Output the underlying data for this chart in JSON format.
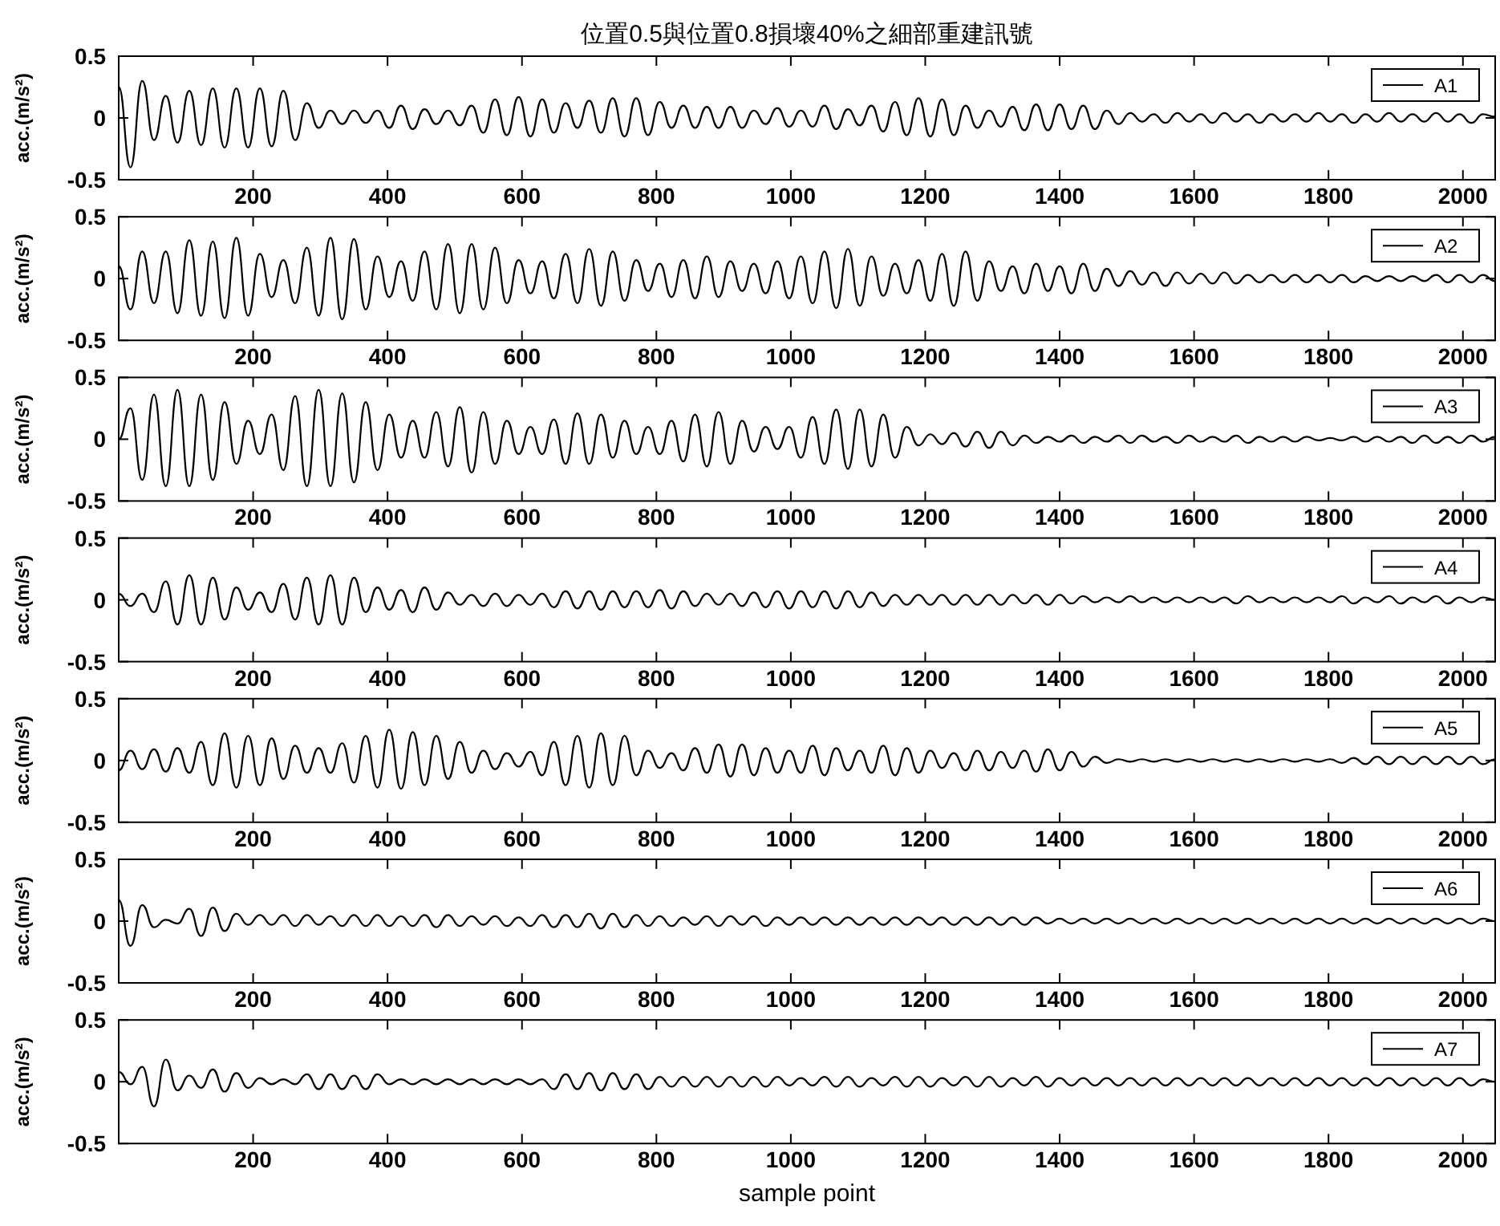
{
  "chart_data": [
    {
      "type": "line",
      "title": "位置0.5與位置0.8損壞40%之細部重建訊號",
      "ylabel": "acc.(m/s²)",
      "xlim": [
        0,
        2048
      ],
      "xticks": [
        200,
        400,
        600,
        800,
        1000,
        1200,
        1400,
        1600,
        1800,
        2000
      ],
      "ylim": [
        -0.5,
        0.5
      ],
      "yticks": [
        -0.5,
        0,
        0.5
      ],
      "legend": "top right",
      "x": [
        0,
        17.5,
        35,
        52.5,
        70,
        87.5,
        105,
        122.5,
        140,
        157.5,
        175,
        192.5,
        210,
        227.5,
        245,
        262.5,
        280,
        297.5,
        315,
        332.5,
        350,
        367.5,
        385,
        402.5,
        420,
        437.5,
        455,
        472.5,
        490,
        507.5,
        525,
        542.5,
        560,
        577.5,
        595,
        612.5,
        630,
        647.5,
        665,
        682.5,
        700,
        717.5,
        735,
        752.5,
        770,
        787.5,
        805,
        822.5,
        840,
        857.5,
        875,
        892.5,
        910,
        927.5,
        945,
        962.5,
        980,
        997.5,
        1015,
        1032.5,
        1050,
        1067.5,
        1085,
        1102.5,
        1120,
        1137.5,
        1155,
        1172.5,
        1190,
        1207.5,
        1225,
        1242.5,
        1260,
        1277.5,
        1295,
        1312.5,
        1330,
        1347.5,
        1365,
        1382.5,
        1400,
        1417.5,
        1435,
        1452.5,
        1470,
        1487.5,
        1505,
        1522.5,
        1540,
        1557.5,
        1575,
        1592.5,
        1610,
        1627.5,
        1645,
        1662.5,
        1680,
        1697.5,
        1715,
        1732.5,
        1750,
        1767.5,
        1785,
        1802.5,
        1820,
        1837.5,
        1855,
        1872.5,
        1890,
        1907.5,
        1925,
        1942.5,
        1960,
        1977.5,
        1995,
        2012.5,
        2030,
        2047.5
      ],
      "series": [
        {
          "name": "A1",
          "color": "#000000",
          "values": [
            0.25,
            -0.4,
            0.3,
            -0.18,
            0.18,
            -0.2,
            0.22,
            -0.22,
            0.24,
            -0.24,
            0.24,
            -0.24,
            0.24,
            -0.23,
            0.22,
            -0.18,
            0.12,
            -0.08,
            0.06,
            -0.05,
            0.06,
            -0.04,
            0.06,
            -0.08,
            0.1,
            -0.09,
            0.07,
            -0.05,
            0.06,
            -0.06,
            0.1,
            -0.12,
            0.15,
            -0.14,
            0.17,
            -0.15,
            0.15,
            -0.12,
            0.12,
            -0.08,
            0.14,
            -0.12,
            0.16,
            -0.15,
            0.16,
            -0.14,
            0.13,
            -0.08,
            0.1,
            -0.08,
            0.09,
            -0.08,
            0.09,
            -0.08,
            0.06,
            -0.05,
            0.08,
            -0.07,
            0.06,
            -0.07,
            0.1,
            -0.09,
            0.07,
            -0.06,
            0.1,
            -0.11,
            0.13,
            -0.14,
            0.16,
            -0.15,
            0.15,
            -0.14,
            0.1,
            -0.08,
            0.06,
            -0.07,
            0.09,
            -0.1,
            0.11,
            -0.1,
            0.11,
            -0.09,
            0.1,
            -0.09,
            0.06,
            -0.05,
            0.04,
            -0.03,
            0.03,
            -0.04,
            0.04,
            -0.03,
            0.03,
            -0.04,
            0.04,
            -0.03,
            0.03,
            -0.04,
            0.03,
            -0.03,
            0.03,
            -0.03,
            0.04,
            -0.03,
            0.03,
            -0.04,
            0.03,
            -0.03,
            0.04,
            -0.03,
            0.03,
            -0.03,
            0.04,
            -0.03,
            0.03,
            -0.04,
            0.03,
            0.01
          ]
        }
      ]
    },
    {
      "type": "line",
      "ylabel": "acc.(m/s²)",
      "xlim": [
        0,
        2048
      ],
      "xticks": [
        200,
        400,
        600,
        800,
        1000,
        1200,
        1400,
        1600,
        1800,
        2000
      ],
      "ylim": [
        -0.5,
        0.5
      ],
      "yticks": [
        -0.5,
        0,
        0.5
      ],
      "legend": "top right",
      "x": [
        0,
        17.5,
        35,
        52.5,
        70,
        87.5,
        105,
        122.5,
        140,
        157.5,
        175,
        192.5,
        210,
        227.5,
        245,
        262.5,
        280,
        297.5,
        315,
        332.5,
        350,
        367.5,
        385,
        402.5,
        420,
        437.5,
        455,
        472.5,
        490,
        507.5,
        525,
        542.5,
        560,
        577.5,
        595,
        612.5,
        630,
        647.5,
        665,
        682.5,
        700,
        717.5,
        735,
        752.5,
        770,
        787.5,
        805,
        822.5,
        840,
        857.5,
        875,
        892.5,
        910,
        927.5,
        945,
        962.5,
        980,
        997.5,
        1015,
        1032.5,
        1050,
        1067.5,
        1085,
        1102.5,
        1120,
        1137.5,
        1155,
        1172.5,
        1190,
        1207.5,
        1225,
        1242.5,
        1260,
        1277.5,
        1295,
        1312.5,
        1330,
        1347.5,
        1365,
        1382.5,
        1400,
        1417.5,
        1435,
        1452.5,
        1470,
        1487.5,
        1505,
        1522.5,
        1540,
        1557.5,
        1575,
        1592.5,
        1610,
        1627.5,
        1645,
        1662.5,
        1680,
        1697.5,
        1715,
        1732.5,
        1750,
        1767.5,
        1785,
        1802.5,
        1820,
        1837.5,
        1855,
        1872.5,
        1890,
        1907.5,
        1925,
        1942.5,
        1960,
        1977.5,
        1995,
        2012.5,
        2030,
        2047.5
      ],
      "series": [
        {
          "name": "A2",
          "color": "#000000",
          "values": [
            0.1,
            -0.25,
            0.22,
            -0.2,
            0.22,
            -0.28,
            0.31,
            -0.3,
            0.3,
            -0.32,
            0.33,
            -0.3,
            0.2,
            -0.15,
            0.15,
            -0.2,
            0.25,
            -0.3,
            0.33,
            -0.33,
            0.32,
            -0.25,
            0.18,
            -0.15,
            0.14,
            -0.18,
            0.22,
            -0.25,
            0.28,
            -0.28,
            0.28,
            -0.25,
            0.25,
            -0.2,
            0.15,
            -0.12,
            0.14,
            -0.16,
            0.2,
            -0.2,
            0.24,
            -0.22,
            0.22,
            -0.18,
            0.15,
            -0.1,
            0.12,
            -0.15,
            0.15,
            -0.16,
            0.18,
            -0.15,
            0.14,
            -0.1,
            0.12,
            -0.12,
            0.14,
            -0.16,
            0.18,
            -0.2,
            0.22,
            -0.24,
            0.24,
            -0.22,
            0.18,
            -0.14,
            0.12,
            -0.12,
            0.15,
            -0.18,
            0.2,
            -0.22,
            0.22,
            -0.18,
            0.14,
            -0.1,
            0.1,
            -0.12,
            0.12,
            -0.1,
            0.1,
            -0.12,
            0.12,
            -0.1,
            0.08,
            -0.06,
            0.06,
            -0.05,
            0.05,
            -0.06,
            0.05,
            -0.04,
            0.04,
            -0.04,
            0.05,
            -0.04,
            0.03,
            -0.03,
            0.03,
            -0.03,
            0.03,
            -0.03,
            0.03,
            -0.03,
            0.03,
            -0.03,
            0.02,
            -0.02,
            0.02,
            -0.02,
            0.02,
            -0.02,
            0.03,
            -0.03,
            0.03,
            -0.03,
            0.03,
            -0.02
          ]
        }
      ]
    },
    {
      "type": "line",
      "ylabel": "acc.(m/s²)",
      "xlim": [
        0,
        2048
      ],
      "xticks": [
        200,
        400,
        600,
        800,
        1000,
        1200,
        1400,
        1600,
        1800,
        2000
      ],
      "ylim": [
        -0.5,
        0.5
      ],
      "yticks": [
        -0.5,
        0,
        0.5
      ],
      "legend": "top right",
      "x": [
        0,
        17.5,
        35,
        52.5,
        70,
        87.5,
        105,
        122.5,
        140,
        157.5,
        175,
        192.5,
        210,
        227.5,
        245,
        262.5,
        280,
        297.5,
        315,
        332.5,
        350,
        367.5,
        385,
        402.5,
        420,
        437.5,
        455,
        472.5,
        490,
        507.5,
        525,
        542.5,
        560,
        577.5,
        595,
        612.5,
        630,
        647.5,
        665,
        682.5,
        700,
        717.5,
        735,
        752.5,
        770,
        787.5,
        805,
        822.5,
        840,
        857.5,
        875,
        892.5,
        910,
        927.5,
        945,
        962.5,
        980,
        997.5,
        1015,
        1032.5,
        1050,
        1067.5,
        1085,
        1102.5,
        1120,
        1137.5,
        1155,
        1172.5,
        1190,
        1207.5,
        1225,
        1242.5,
        1260,
        1277.5,
        1295,
        1312.5,
        1330,
        1347.5,
        1365,
        1382.5,
        1400,
        1417.5,
        1435,
        1452.5,
        1470,
        1487.5,
        1505,
        1522.5,
        1540,
        1557.5,
        1575,
        1592.5,
        1610,
        1627.5,
        1645,
        1662.5,
        1680,
        1697.5,
        1715,
        1732.5,
        1750,
        1767.5,
        1785,
        1802.5,
        1820,
        1837.5,
        1855,
        1872.5,
        1890,
        1907.5,
        1925,
        1942.5,
        1960,
        1977.5,
        1995,
        2012.5,
        2030,
        2047.5
      ],
      "series": [
        {
          "name": "A3",
          "color": "#000000",
          "values": [
            0.0,
            0.25,
            -0.33,
            0.36,
            -0.38,
            0.4,
            -0.38,
            0.36,
            -0.33,
            0.3,
            -0.2,
            0.15,
            -0.12,
            0.2,
            -0.25,
            0.35,
            -0.38,
            0.4,
            -0.38,
            0.37,
            -0.35,
            0.3,
            -0.25,
            0.2,
            -0.15,
            0.15,
            -0.15,
            0.22,
            -0.22,
            0.26,
            -0.27,
            0.22,
            -0.2,
            0.15,
            -0.12,
            0.1,
            -0.12,
            0.16,
            -0.2,
            0.21,
            -0.2,
            0.2,
            -0.15,
            0.15,
            -0.12,
            0.1,
            -0.12,
            0.15,
            -0.18,
            0.2,
            -0.22,
            0.22,
            -0.2,
            0.15,
            -0.1,
            0.1,
            -0.08,
            0.1,
            -0.15,
            0.18,
            -0.2,
            0.24,
            -0.24,
            0.24,
            -0.22,
            0.2,
            -0.15,
            0.1,
            -0.05,
            0.04,
            -0.04,
            0.05,
            -0.06,
            0.06,
            -0.07,
            0.06,
            -0.05,
            0.03,
            -0.03,
            0.02,
            -0.02,
            0.03,
            -0.03,
            0.02,
            -0.02,
            0.03,
            -0.03,
            0.03,
            -0.02,
            0.02,
            -0.03,
            0.03,
            -0.02,
            0.02,
            -0.02,
            0.03,
            -0.03,
            0.02,
            -0.02,
            0.02,
            -0.02,
            0.02,
            -0.01,
            0.01,
            -0.01,
            0.02,
            -0.02,
            0.02,
            -0.02,
            0.02,
            -0.03,
            0.03,
            -0.03,
            0.02,
            -0.03,
            0.03,
            -0.02,
            0.02
          ]
        }
      ]
    },
    {
      "type": "line",
      "ylabel": "acc.(m/s²)",
      "xlim": [
        0,
        2048
      ],
      "xticks": [
        200,
        400,
        600,
        800,
        1000,
        1200,
        1400,
        1600,
        1800,
        2000
      ],
      "ylim": [
        -0.5,
        0.5
      ],
      "yticks": [
        -0.5,
        0,
        0.5
      ],
      "legend": "top right",
      "x": [
        0,
        17.5,
        35,
        52.5,
        70,
        87.5,
        105,
        122.5,
        140,
        157.5,
        175,
        192.5,
        210,
        227.5,
        245,
        262.5,
        280,
        297.5,
        315,
        332.5,
        350,
        367.5,
        385,
        402.5,
        420,
        437.5,
        455,
        472.5,
        490,
        507.5,
        525,
        542.5,
        560,
        577.5,
        595,
        612.5,
        630,
        647.5,
        665,
        682.5,
        700,
        717.5,
        735,
        752.5,
        770,
        787.5,
        805,
        822.5,
        840,
        857.5,
        875,
        892.5,
        910,
        927.5,
        945,
        962.5,
        980,
        997.5,
        1015,
        1032.5,
        1050,
        1067.5,
        1085,
        1102.5,
        1120,
        1137.5,
        1155,
        1172.5,
        1190,
        1207.5,
        1225,
        1242.5,
        1260,
        1277.5,
        1295,
        1312.5,
        1330,
        1347.5,
        1365,
        1382.5,
        1400,
        1417.5,
        1435,
        1452.5,
        1470,
        1487.5,
        1505,
        1522.5,
        1540,
        1557.5,
        1575,
        1592.5,
        1610,
        1627.5,
        1645,
        1662.5,
        1680,
        1697.5,
        1715,
        1732.5,
        1750,
        1767.5,
        1785,
        1802.5,
        1820,
        1837.5,
        1855,
        1872.5,
        1890,
        1907.5,
        1925,
        1942.5,
        1960,
        1977.5,
        1995,
        2012.5,
        2030,
        2047.5
      ],
      "series": [
        {
          "name": "A4",
          "color": "#000000",
          "values": [
            0.05,
            -0.05,
            0.05,
            -0.1,
            0.15,
            -0.2,
            0.2,
            -0.2,
            0.18,
            -0.16,
            0.1,
            -0.08,
            0.06,
            -0.1,
            0.13,
            -0.16,
            0.18,
            -0.2,
            0.2,
            -0.2,
            0.18,
            -0.1,
            0.1,
            -0.08,
            0.08,
            -0.1,
            0.1,
            -0.08,
            0.06,
            -0.04,
            0.04,
            -0.05,
            0.05,
            -0.05,
            0.04,
            -0.04,
            0.05,
            -0.06,
            0.07,
            -0.07,
            0.07,
            -0.08,
            0.07,
            -0.06,
            0.07,
            -0.06,
            0.08,
            -0.07,
            0.07,
            -0.05,
            0.05,
            -0.04,
            0.05,
            -0.05,
            0.06,
            -0.06,
            0.07,
            -0.07,
            0.07,
            -0.06,
            0.07,
            -0.07,
            0.07,
            -0.06,
            0.06,
            -0.05,
            0.04,
            -0.04,
            0.04,
            -0.04,
            0.04,
            -0.04,
            0.04,
            -0.04,
            0.04,
            -0.04,
            0.04,
            -0.03,
            0.04,
            -0.04,
            0.04,
            -0.03,
            0.03,
            -0.02,
            0.02,
            -0.02,
            0.03,
            -0.02,
            0.02,
            -0.02,
            0.02,
            -0.02,
            0.02,
            -0.02,
            0.02,
            -0.03,
            0.03,
            -0.02,
            0.02,
            -0.02,
            0.02,
            -0.02,
            0.02,
            -0.02,
            0.03,
            -0.03,
            0.02,
            -0.02,
            0.03,
            -0.03,
            0.02,
            -0.02,
            0.03,
            -0.03,
            0.02,
            -0.02,
            0.02,
            0.0
          ]
        }
      ]
    },
    {
      "type": "line",
      "ylabel": "acc.(m/s²)",
      "xlim": [
        0,
        2048
      ],
      "xticks": [
        200,
        400,
        600,
        800,
        1000,
        1200,
        1400,
        1600,
        1800,
        2000
      ],
      "ylim": [
        -0.5,
        0.5
      ],
      "yticks": [
        -0.5,
        0,
        0.5
      ],
      "legend": "top right",
      "x": [
        0,
        17.5,
        35,
        52.5,
        70,
        87.5,
        105,
        122.5,
        140,
        157.5,
        175,
        192.5,
        210,
        227.5,
        245,
        262.5,
        280,
        297.5,
        315,
        332.5,
        350,
        367.5,
        385,
        402.5,
        420,
        437.5,
        455,
        472.5,
        490,
        507.5,
        525,
        542.5,
        560,
        577.5,
        595,
        612.5,
        630,
        647.5,
        665,
        682.5,
        700,
        717.5,
        735,
        752.5,
        770,
        787.5,
        805,
        822.5,
        840,
        857.5,
        875,
        892.5,
        910,
        927.5,
        945,
        962.5,
        980,
        997.5,
        1015,
        1032.5,
        1050,
        1067.5,
        1085,
        1102.5,
        1120,
        1137.5,
        1155,
        1172.5,
        1190,
        1207.5,
        1225,
        1242.5,
        1260,
        1277.5,
        1295,
        1312.5,
        1330,
        1347.5,
        1365,
        1382.5,
        1400,
        1417.5,
        1435,
        1452.5,
        1470,
        1487.5,
        1505,
        1522.5,
        1540,
        1557.5,
        1575,
        1592.5,
        1610,
        1627.5,
        1645,
        1662.5,
        1680,
        1697.5,
        1715,
        1732.5,
        1750,
        1767.5,
        1785,
        1802.5,
        1820,
        1837.5,
        1855,
        1872.5,
        1890,
        1907.5,
        1925,
        1942.5,
        1960,
        1977.5,
        1995,
        2012.5,
        2030,
        2047.5
      ],
      "series": [
        {
          "name": "A5",
          "color": "#000000",
          "values": [
            -0.08,
            0.08,
            -0.07,
            0.09,
            -0.09,
            0.1,
            -0.1,
            0.15,
            -0.2,
            0.22,
            -0.22,
            0.2,
            -0.2,
            0.18,
            -0.15,
            0.12,
            -0.1,
            0.1,
            -0.1,
            0.14,
            -0.18,
            0.2,
            -0.22,
            0.25,
            -0.23,
            0.23,
            -0.2,
            0.2,
            -0.15,
            0.15,
            -0.1,
            0.08,
            -0.07,
            0.06,
            -0.05,
            0.07,
            -0.12,
            0.15,
            -0.2,
            0.2,
            -0.22,
            0.22,
            -0.2,
            0.2,
            -0.12,
            0.08,
            -0.06,
            0.06,
            -0.08,
            0.1,
            -0.1,
            0.13,
            -0.13,
            0.13,
            -0.12,
            0.1,
            -0.1,
            0.08,
            -0.1,
            0.12,
            -0.12,
            0.1,
            -0.08,
            0.08,
            -0.1,
            0.12,
            -0.12,
            0.1,
            -0.1,
            0.08,
            -0.06,
            0.06,
            -0.08,
            0.08,
            -0.08,
            0.07,
            -0.06,
            0.08,
            -0.09,
            0.09,
            -0.08,
            0.07,
            -0.05,
            0.03,
            -0.02,
            0.01,
            -0.01,
            0.01,
            -0.01,
            0.01,
            -0.01,
            0.01,
            -0.01,
            0.01,
            -0.01,
            0.01,
            -0.01,
            0.01,
            -0.01,
            0.01,
            -0.01,
            0.01,
            -0.01,
            0.01,
            -0.02,
            0.02,
            -0.03,
            0.03,
            -0.03,
            0.03,
            -0.03,
            0.03,
            -0.03,
            0.03,
            -0.03,
            0.03,
            -0.03,
            0.01
          ]
        }
      ]
    },
    {
      "type": "line",
      "ylabel": "acc.(m/s²)",
      "xlim": [
        0,
        2048
      ],
      "xticks": [
        200,
        400,
        600,
        800,
        1000,
        1200,
        1400,
        1600,
        1800,
        2000
      ],
      "ylim": [
        -0.5,
        0.5
      ],
      "yticks": [
        -0.5,
        0,
        0.5
      ],
      "legend": "top right",
      "x": [
        0,
        17.5,
        35,
        52.5,
        70,
        87.5,
        105,
        122.5,
        140,
        157.5,
        175,
        192.5,
        210,
        227.5,
        245,
        262.5,
        280,
        297.5,
        315,
        332.5,
        350,
        367.5,
        385,
        402.5,
        420,
        437.5,
        455,
        472.5,
        490,
        507.5,
        525,
        542.5,
        560,
        577.5,
        595,
        612.5,
        630,
        647.5,
        665,
        682.5,
        700,
        717.5,
        735,
        752.5,
        770,
        787.5,
        805,
        822.5,
        840,
        857.5,
        875,
        892.5,
        910,
        927.5,
        945,
        962.5,
        980,
        997.5,
        1015,
        1032.5,
        1050,
        1067.5,
        1085,
        1102.5,
        1120,
        1137.5,
        1155,
        1172.5,
        1190,
        1207.5,
        1225,
        1242.5,
        1260,
        1277.5,
        1295,
        1312.5,
        1330,
        1347.5,
        1365,
        1382.5,
        1400,
        1417.5,
        1435,
        1452.5,
        1470,
        1487.5,
        1505,
        1522.5,
        1540,
        1557.5,
        1575,
        1592.5,
        1610,
        1627.5,
        1645,
        1662.5,
        1680,
        1697.5,
        1715,
        1732.5,
        1750,
        1767.5,
        1785,
        1802.5,
        1820,
        1837.5,
        1855,
        1872.5,
        1890,
        1907.5,
        1925,
        1942.5,
        1960,
        1977.5,
        1995,
        2012.5,
        2030,
        2047.5
      ],
      "series": [
        {
          "name": "A6",
          "color": "#000000",
          "values": [
            0.17,
            -0.2,
            0.13,
            -0.05,
            0.01,
            -0.02,
            0.1,
            -0.12,
            0.11,
            -0.08,
            0.06,
            -0.03,
            0.05,
            -0.03,
            0.05,
            -0.04,
            0.05,
            -0.03,
            0.04,
            -0.04,
            0.05,
            -0.04,
            0.05,
            -0.04,
            0.04,
            -0.04,
            0.05,
            -0.05,
            0.05,
            -0.04,
            0.04,
            -0.03,
            0.04,
            -0.04,
            0.03,
            -0.04,
            0.05,
            -0.05,
            0.05,
            -0.05,
            0.06,
            -0.06,
            0.06,
            -0.05,
            0.05,
            -0.04,
            0.04,
            -0.04,
            0.03,
            -0.03,
            0.04,
            -0.04,
            0.04,
            -0.03,
            0.04,
            -0.04,
            0.03,
            -0.03,
            0.03,
            -0.03,
            0.03,
            -0.03,
            0.03,
            -0.03,
            0.03,
            -0.03,
            0.03,
            -0.03,
            0.03,
            -0.03,
            0.03,
            -0.03,
            0.03,
            -0.03,
            0.03,
            -0.03,
            0.03,
            -0.03,
            0.03,
            -0.02,
            0.02,
            -0.02,
            0.02,
            -0.02,
            0.02,
            -0.02,
            0.02,
            -0.02,
            0.02,
            -0.02,
            0.02,
            -0.02,
            0.02,
            -0.02,
            0.02,
            -0.02,
            0.02,
            -0.02,
            0.02,
            -0.02,
            0.02,
            -0.02,
            0.02,
            -0.02,
            0.02,
            -0.02,
            0.02,
            -0.02,
            0.02,
            -0.02,
            0.02,
            -0.02,
            0.02,
            -0.02,
            0.02,
            -0.02,
            0.02,
            0.0
          ]
        }
      ]
    },
    {
      "type": "line",
      "ylabel": "acc.(m/s²)",
      "xlabel": "sample point",
      "xlim": [
        0,
        2048
      ],
      "xticks": [
        200,
        400,
        600,
        800,
        1000,
        1200,
        1400,
        1600,
        1800,
        2000
      ],
      "ylim": [
        -0.5,
        0.5
      ],
      "yticks": [
        -0.5,
        0,
        0.5
      ],
      "legend": "top right",
      "x": [
        0,
        17.5,
        35,
        52.5,
        70,
        87.5,
        105,
        122.5,
        140,
        157.5,
        175,
        192.5,
        210,
        227.5,
        245,
        262.5,
        280,
        297.5,
        315,
        332.5,
        350,
        367.5,
        385,
        402.5,
        420,
        437.5,
        455,
        472.5,
        490,
        507.5,
        525,
        542.5,
        560,
        577.5,
        595,
        612.5,
        630,
        647.5,
        665,
        682.5,
        700,
        717.5,
        735,
        752.5,
        770,
        787.5,
        805,
        822.5,
        840,
        857.5,
        875,
        892.5,
        910,
        927.5,
        945,
        962.5,
        980,
        997.5,
        1015,
        1032.5,
        1050,
        1067.5,
        1085,
        1102.5,
        1120,
        1137.5,
        1155,
        1172.5,
        1190,
        1207.5,
        1225,
        1242.5,
        1260,
        1277.5,
        1295,
        1312.5,
        1330,
        1347.5,
        1365,
        1382.5,
        1400,
        1417.5,
        1435,
        1452.5,
        1470,
        1487.5,
        1505,
        1522.5,
        1540,
        1557.5,
        1575,
        1592.5,
        1610,
        1627.5,
        1645,
        1662.5,
        1680,
        1697.5,
        1715,
        1732.5,
        1750,
        1767.5,
        1785,
        1802.5,
        1820,
        1837.5,
        1855,
        1872.5,
        1890,
        1907.5,
        1925,
        1942.5,
        1960,
        1977.5,
        1995,
        2012.5,
        2030,
        2047.5
      ],
      "series": [
        {
          "name": "A7",
          "color": "#000000",
          "values": [
            0.08,
            -0.02,
            0.12,
            -0.2,
            0.18,
            -0.07,
            0.05,
            -0.05,
            0.1,
            -0.08,
            0.07,
            -0.05,
            0.03,
            -0.02,
            0.02,
            -0.02,
            0.06,
            -0.06,
            0.06,
            -0.06,
            0.05,
            -0.06,
            0.06,
            -0.02,
            0.02,
            -0.02,
            0.02,
            -0.02,
            0.02,
            -0.02,
            0.02,
            -0.02,
            0.02,
            -0.02,
            0.02,
            -0.02,
            0.02,
            -0.06,
            0.06,
            -0.06,
            0.07,
            -0.07,
            0.07,
            -0.06,
            0.06,
            -0.06,
            0.04,
            -0.04,
            0.04,
            -0.04,
            0.04,
            -0.04,
            0.04,
            -0.04,
            0.04,
            -0.04,
            0.04,
            -0.03,
            0.03,
            -0.03,
            0.04,
            -0.04,
            0.04,
            -0.04,
            0.03,
            -0.03,
            0.04,
            -0.04,
            0.04,
            -0.04,
            0.03,
            -0.03,
            0.04,
            -0.04,
            0.04,
            -0.04,
            0.03,
            -0.03,
            0.04,
            -0.04,
            0.03,
            -0.03,
            0.03,
            -0.03,
            0.03,
            -0.03,
            0.03,
            -0.03,
            0.03,
            -0.03,
            0.03,
            -0.03,
            0.03,
            -0.03,
            0.03,
            -0.03,
            0.03,
            -0.03,
            0.03,
            -0.03,
            0.03,
            -0.03,
            0.03,
            -0.03,
            0.03,
            -0.03,
            0.03,
            -0.03,
            0.03,
            -0.03,
            0.03,
            -0.03,
            0.03,
            -0.03,
            0.03,
            -0.03,
            0.02,
            0.0
          ]
        }
      ]
    }
  ]
}
